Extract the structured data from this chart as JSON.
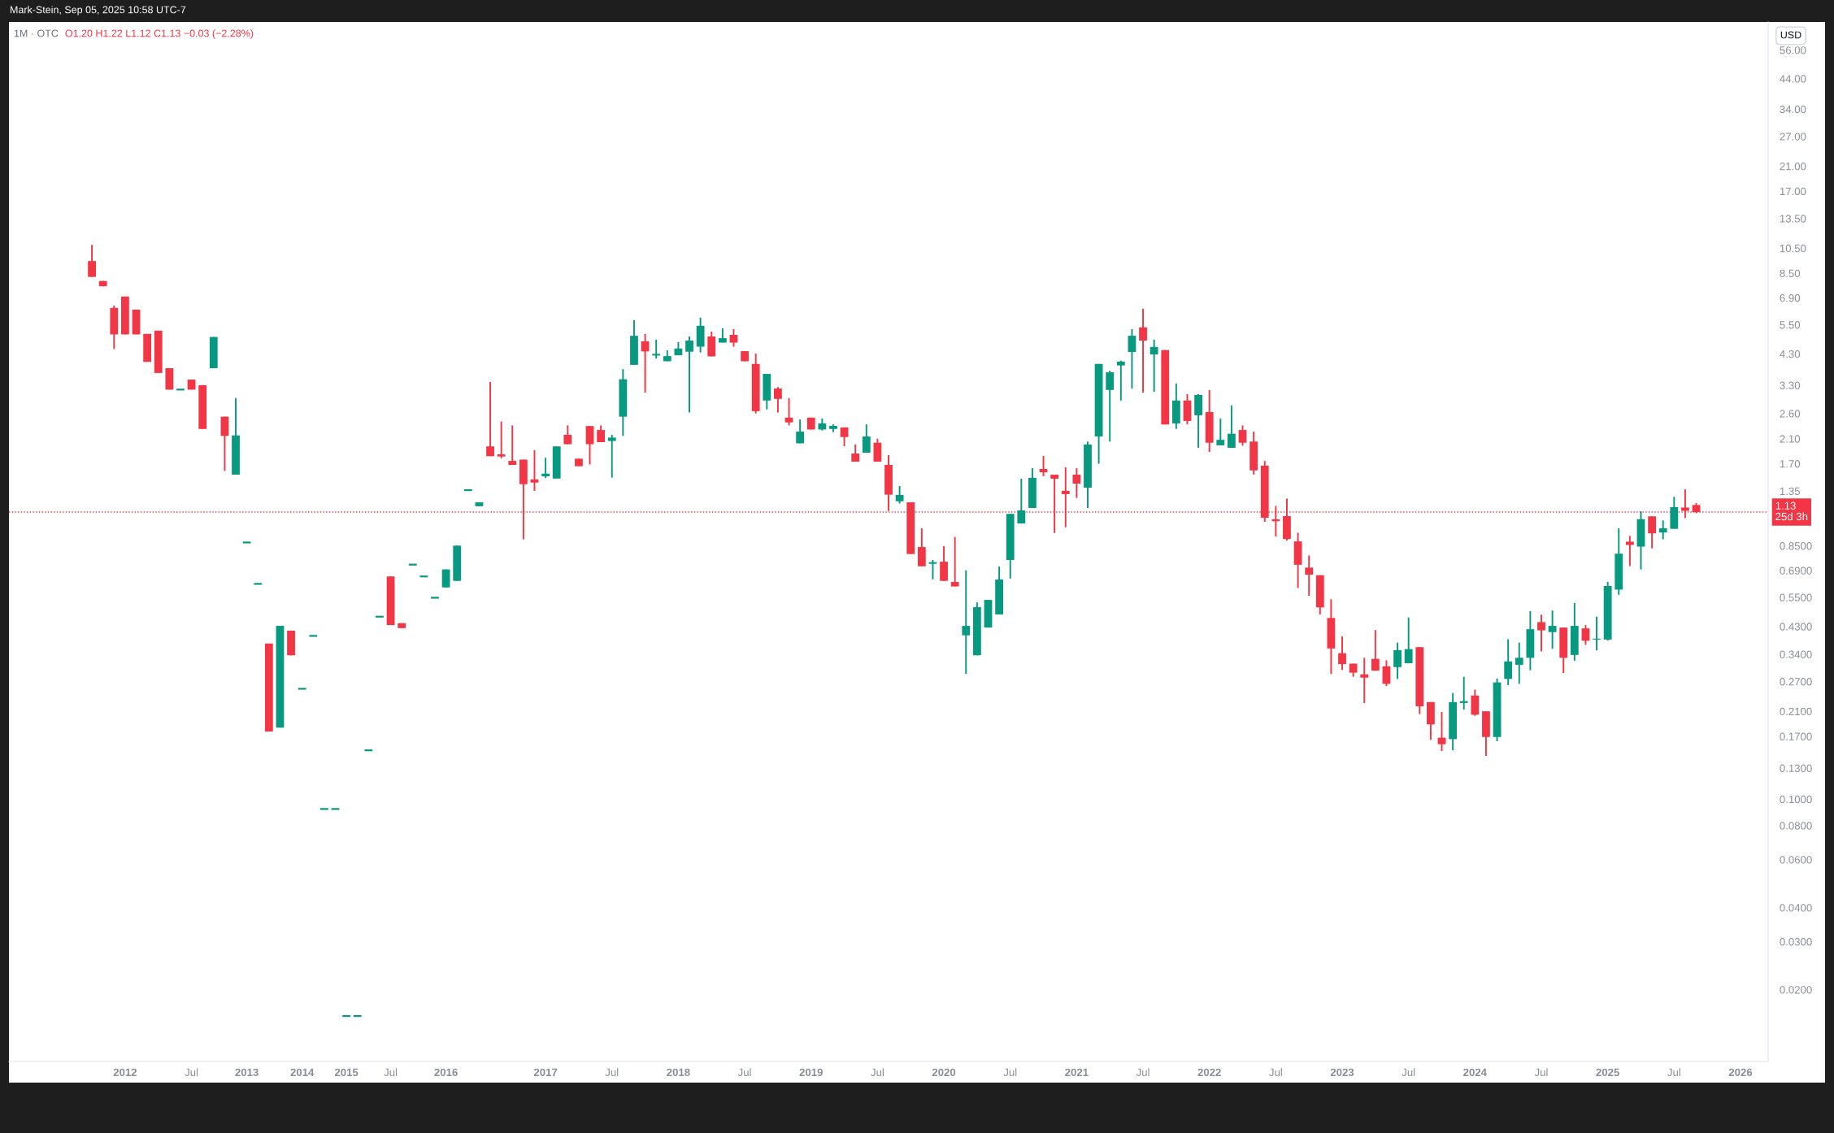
{
  "chart_data": {
    "type": "candlestick",
    "title": "1M · OTC",
    "subtitle": "O1.20 H1.22 L1.12 C1.13 −0.03 (−2.28%)",
    "annotations": [
      "Mark-Stein, Sep 05, 2025 10:58 UTC-7",
      "USD"
    ],
    "categories": [
      null,
      null,
      null,
      null,
      null,
      null,
      null,
      null,
      null,
      null,
      "2012",
      null,
      null,
      null,
      null,
      null,
      "Jul",
      null,
      null,
      null,
      null,
      "2013",
      null,
      null,
      null,
      null,
      "2014",
      null,
      null,
      null,
      "2015",
      null,
      null,
      null,
      "Jul",
      null,
      null,
      null,
      null,
      "2016",
      null,
      null,
      null,
      null,
      null,
      null,
      null,
      null,
      "2017",
      null,
      null,
      null,
      null,
      null,
      "Jul",
      null,
      null,
      null,
      null,
      null,
      "2018",
      null,
      null,
      null,
      null,
      null,
      "Jul",
      null,
      null,
      null,
      null,
      null,
      "2019",
      null,
      null,
      null,
      null,
      null,
      "Jul",
      null,
      null,
      null,
      null,
      null,
      "2020",
      null,
      null,
      null,
      null,
      null,
      "Jul",
      null,
      null,
      null,
      null,
      null,
      "2021",
      null,
      null,
      null,
      null,
      null,
      "Jul",
      null,
      null,
      null,
      null,
      null,
      "2022",
      null,
      null,
      null,
      null,
      null,
      "Jul",
      null,
      null,
      null,
      null,
      null,
      "2023",
      null,
      null,
      null,
      null,
      null,
      "Jul",
      null,
      null,
      null,
      null,
      null,
      "2024",
      null,
      null,
      null,
      null,
      null,
      "Jul",
      null,
      null,
      null,
      null,
      null,
      "2025",
      null,
      null,
      null,
      null,
      null,
      "Jul",
      null,
      null,
      null,
      null,
      null,
      "2026",
      null,
      null
    ],
    "ohlc": [
      null,
      null,
      null,
      null,
      null,
      null,
      null,
      [
        9.42,
        10.8,
        8.24,
        8.24
      ],
      [
        7.96,
        7.96,
        7.61,
        7.61
      ],
      [
        6.34,
        6.47,
        4.48,
        5.07
      ],
      [
        6.98,
        6.98,
        5.07,
        5.07
      ],
      [
        6.25,
        6.25,
        5.07,
        5.07
      ],
      [
        5.09,
        5.09,
        4.02,
        4.02
      ],
      [
        5.23,
        5.23,
        3.66,
        3.66
      ],
      [
        3.81,
        3.81,
        3.18,
        3.18
      ],
      [
        3.18,
        3.18,
        3.18,
        3.18
      ],
      [
        3.46,
        3.46,
        3.18,
        3.18
      ],
      [
        3.3,
        3.3,
        2.28,
        2.28
      ],
      [
        3.81,
        4.96,
        3.81,
        4.96
      ],
      [
        2.53,
        2.53,
        1.6,
        2.15
      ],
      [
        1.55,
        2.96,
        1.55,
        2.16
      ],
      [
        0.874,
        0.874,
        0.874,
        0.874
      ],
      [
        0.616,
        0.616,
        0.616,
        0.616
      ],
      [
        0.372,
        0.372,
        0.177,
        0.177
      ],
      [
        0.183,
        0.432,
        0.183,
        0.432
      ],
      [
        0.415,
        0.415,
        0.337,
        0.337
      ],
      [
        0.254,
        0.254,
        0.254,
        0.254
      ],
      [
        0.397,
        0.397,
        0.397,
        0.397
      ],
      [
        0.092,
        0.092,
        0.092,
        0.092
      ],
      [
        0.092,
        0.092,
        0.092,
        0.092
      ],
      [
        0.016,
        0.016,
        0.016,
        0.016
      ],
      [
        0.016,
        0.016,
        0.016,
        0.016
      ],
      [
        0.151,
        0.151,
        0.151,
        0.151
      ],
      [
        0.467,
        0.467,
        0.467,
        0.467
      ],
      [
        0.656,
        0.656,
        0.435,
        0.435
      ],
      [
        0.442,
        0.442,
        0.424,
        0.424
      ],
      [
        0.725,
        0.725,
        0.725,
        0.725
      ],
      [
        0.656,
        0.656,
        0.656,
        0.656
      ],
      [
        0.548,
        0.548,
        0.548,
        0.548
      ],
      [
        0.598,
        0.696,
        0.598,
        0.696
      ],
      [
        0.632,
        0.851,
        0.632,
        0.851
      ],
      [
        1.36,
        1.36,
        1.36,
        1.36
      ],
      [
        1.187,
        1.227,
        1.187,
        1.227
      ],
      [
        1.968,
        3.39,
        1.812,
        1.812
      ],
      [
        1.84,
        2.43,
        1.78,
        1.807
      ],
      [
        1.741,
        2.35,
        1.683,
        1.683
      ],
      [
        1.76,
        1.76,
        0.897,
        1.43
      ],
      [
        1.489,
        1.905,
        1.352,
        1.45
      ],
      [
        1.528,
        1.788,
        1.506,
        1.563
      ],
      [
        1.5,
        1.968,
        1.5,
        1.968
      ],
      [
        2.17,
        2.35,
        2.005,
        2.005
      ],
      [
        1.774,
        1.774,
        1.665,
        1.665
      ],
      [
        2.337,
        2.337,
        1.69,
        2.005
      ],
      [
        2.26,
        2.35,
        2.04,
        2.04
      ],
      [
        2.06,
        2.17,
        1.511,
        2.12
      ],
      [
        2.53,
        3.78,
        2.15,
        3.47
      ],
      [
        3.92,
        5.72,
        3.92,
        5.01
      ],
      [
        4.78,
        5.09,
        3.1,
        4.39
      ],
      [
        4.24,
        4.85,
        4.13,
        4.3
      ],
      [
        4.04,
        4.43,
        4.04,
        4.22
      ],
      [
        4.25,
        4.75,
        4.25,
        4.5
      ],
      [
        4.38,
        4.98,
        2.62,
        4.81
      ],
      [
        4.57,
        5.84,
        4.35,
        5.45
      ],
      [
        4.98,
        5.19,
        4.21,
        4.21
      ],
      [
        4.73,
        5.34,
        4.73,
        4.91
      ],
      [
        5.05,
        5.3,
        4.57,
        4.73
      ],
      [
        4.4,
        4.4,
        4.04,
        4.04
      ],
      [
        3.95,
        4.31,
        2.6,
        2.65
      ],
      [
        2.9,
        3.63,
        2.69,
        3.63
      ],
      [
        3.21,
        3.25,
        2.62,
        2.94
      ],
      [
        2.51,
        2.96,
        2.35,
        2.41
      ],
      [
        2.02,
        2.47,
        2.02,
        2.23
      ],
      [
        2.51,
        2.51,
        2.27,
        2.27
      ],
      [
        2.27,
        2.49,
        2.25,
        2.39
      ],
      [
        2.28,
        2.37,
        2.22,
        2.34
      ],
      [
        2.31,
        2.31,
        1.97,
        2.13
      ],
      [
        1.853,
        2.0,
        1.73,
        1.73
      ],
      [
        1.866,
        2.37,
        1.866,
        2.14
      ],
      [
        2.03,
        2.1,
        1.73,
        1.73
      ],
      [
        1.683,
        1.827,
        1.14,
        1.309
      ],
      [
        1.238,
        1.408,
        1.214,
        1.306
      ],
      [
        1.227,
        1.227,
        0.793,
        0.793
      ],
      [
        0.841,
        0.985,
        0.715,
        0.715
      ],
      [
        0.73,
        0.754,
        0.64,
        0.74
      ],
      [
        0.743,
        0.847,
        0.632,
        0.632
      ],
      [
        0.626,
        0.916,
        0.603,
        0.603
      ],
      [
        0.399,
        0.691,
        0.288,
        0.432
      ],
      [
        0.337,
        0.527,
        0.337,
        0.506
      ],
      [
        0.426,
        0.538,
        0.426,
        0.538
      ],
      [
        0.476,
        0.713,
        0.476,
        0.639
      ],
      [
        0.754,
        1.113,
        0.644,
        1.113
      ],
      [
        1.026,
        1.498,
        1.026,
        1.146
      ],
      [
        1.17,
        1.637,
        1.17,
        1.509
      ],
      [
        1.626,
        1.815,
        1.53,
        1.581
      ],
      [
        1.55,
        1.55,
        0.947,
        1.498
      ],
      [
        1.352,
        1.649,
        0.994,
        1.315
      ],
      [
        1.55,
        1.637,
        1.273,
        1.437
      ],
      [
        1.389,
        2.05,
        1.17,
        2.0
      ],
      [
        2.14,
        3.95,
        1.7,
        3.95
      ],
      [
        3.17,
        3.73,
        2.05,
        3.68
      ],
      [
        3.9,
        4.06,
        2.9,
        4.03
      ],
      [
        4.37,
        5.3,
        3.21,
        5.01
      ],
      [
        5.38,
        6.3,
        3.1,
        4.81
      ],
      [
        4.28,
        4.85,
        3.12,
        4.56
      ],
      [
        4.44,
        4.44,
        2.37,
        2.37
      ],
      [
        2.39,
        3.35,
        2.28,
        2.9
      ],
      [
        2.9,
        3.06,
        2.37,
        2.44
      ],
      [
        2.56,
        3.06,
        1.945,
        3.04
      ],
      [
        2.63,
        3.17,
        1.878,
        2.03
      ],
      [
        1.986,
        2.49,
        1.986,
        2.08
      ],
      [
        1.945,
        2.78,
        1.945,
        2.19
      ],
      [
        2.26,
        2.35,
        1.98,
        2.03
      ],
      [
        2.05,
        2.23,
        1.552,
        1.607
      ],
      [
        1.672,
        1.74,
        1.041,
        1.077
      ],
      [
        1.063,
        1.19,
        0.919,
        1.046
      ],
      [
        1.092,
        1.267,
        0.889,
        0.9
      ],
      [
        0.882,
        0.949,
        0.596,
        0.724
      ],
      [
        0.707,
        0.783,
        0.557,
        0.666
      ],
      [
        0.663,
        0.663,
        0.476,
        0.505
      ],
      [
        0.462,
        0.541,
        0.288,
        0.357
      ],
      [
        0.343,
        0.395,
        0.298,
        0.313
      ],
      [
        0.314,
        0.314,
        0.281,
        0.291
      ],
      [
        0.287,
        0.33,
        0.225,
        0.279
      ],
      [
        0.327,
        0.417,
        0.296,
        0.296
      ],
      [
        0.307,
        0.323,
        0.26,
        0.265
      ],
      [
        0.305,
        0.375,
        0.276,
        0.352
      ],
      [
        0.315,
        0.464,
        0.315,
        0.355
      ],
      [
        0.361,
        0.361,
        0.205,
        0.219
      ],
      [
        0.227,
        0.227,
        0.165,
        0.188
      ],
      [
        0.168,
        0.209,
        0.15,
        0.159
      ],
      [
        0.166,
        0.245,
        0.151,
        0.227
      ],
      [
        0.227,
        0.281,
        0.213,
        0.227
      ],
      [
        0.24,
        0.252,
        0.202,
        0.204
      ],
      [
        0.21,
        0.21,
        0.144,
        0.169
      ],
      [
        0.169,
        0.277,
        0.163,
        0.268
      ],
      [
        0.276,
        0.386,
        0.262,
        0.32
      ],
      [
        0.311,
        0.375,
        0.265,
        0.33
      ],
      [
        0.33,
        0.489,
        0.297,
        0.42
      ],
      [
        0.446,
        0.475,
        0.348,
        0.416
      ],
      [
        0.41,
        0.492,
        0.356,
        0.432
      ],
      [
        0.426,
        0.426,
        0.29,
        0.33
      ],
      [
        0.338,
        0.524,
        0.322,
        0.432
      ],
      [
        0.423,
        0.435,
        0.368,
        0.381
      ],
      [
        0.385,
        0.467,
        0.351,
        0.388
      ],
      [
        0.385,
        0.627,
        0.382,
        0.605
      ],
      [
        0.587,
        0.985,
        0.562,
        0.795
      ],
      [
        0.88,
        0.924,
        0.716,
        0.856
      ],
      [
        0.844,
        1.137,
        0.696,
        1.064
      ],
      [
        1.09,
        1.09,
        0.832,
        0.944
      ],
      [
        0.951,
        1.053,
        0.898,
        0.985
      ],
      [
        0.981,
        1.285,
        0.981,
        1.178
      ],
      [
        1.174,
        1.369,
        1.075,
        1.142
      ],
      [
        1.2,
        1.22,
        1.12,
        1.13
      ],
      null,
      null,
      null,
      null,
      null,
      null
    ],
    "colors": [
      null,
      null,
      null,
      null,
      null,
      null,
      null,
      "#f23645",
      "#f23645",
      "#f23645",
      "#f23645",
      "#f23645",
      "#f23645",
      "#f23645",
      "#f23645",
      "#089981",
      "#f23645",
      "#f23645",
      "#089981",
      "#f23645",
      "#089981",
      "#089981",
      "#089981",
      "#f23645",
      "#089981",
      "#f23645",
      "#089981",
      "#089981",
      "#089981",
      "#089981",
      "#089981",
      "#089981",
      "#089981",
      "#089981",
      "#f23645",
      "#f23645",
      "#089981",
      "#089981",
      "#089981",
      "#089981",
      "#089981",
      "#089981",
      "#089981",
      "#f23645",
      "#f23645",
      "#f23645",
      "#f23645",
      "#f23645",
      "#089981",
      "#089981",
      "#f23645",
      "#f23645",
      "#f23645",
      "#f23645",
      "#089981",
      "#089981",
      "#089981",
      "#f23645",
      "#089981",
      "#089981",
      "#089981",
      "#089981",
      "#089981",
      "#f23645",
      "#089981",
      "#f23645",
      "#f23645",
      "#f23645",
      "#089981",
      "#f23645",
      "#f23645",
      "#089981",
      "#f23645",
      "#089981",
      "#089981",
      "#f23645",
      "#f23645",
      "#089981",
      "#f23645",
      "#f23645",
      "#089981",
      "#f23645",
      "#f23645",
      "#089981",
      "#f23645",
      "#f23645",
      "#089981",
      "#089981",
      "#089981",
      "#089981",
      "#089981",
      "#089981",
      "#089981",
      "#f23645",
      "#f23645",
      "#f23645",
      "#f23645",
      "#089981",
      "#089981",
      "#089981",
      "#089981",
      "#089981",
      "#f23645",
      "#089981",
      "#f23645",
      "#089981",
      "#f23645",
      "#089981",
      "#f23645",
      "#089981",
      "#089981",
      "#f23645",
      "#f23645",
      "#f23645",
      "#f23645",
      "#f23645",
      "#f23645",
      "#f23645",
      "#f23645",
      "#f23645",
      "#f23645",
      "#f23645",
      "#f23645",
      "#f23645",
      "#f23645",
      "#089981",
      "#089981",
      "#f23645",
      "#f23645",
      "#f23645",
      "#089981",
      "#089981",
      "#f23645",
      "#f23645",
      "#089981",
      "#089981",
      "#089981",
      "#089981",
      "#f23645",
      "#089981",
      "#f23645",
      "#089981",
      "#f23645",
      "#089981",
      "#089981",
      "#089981",
      "#f23645",
      "#089981",
      "#f23645",
      "#089981",
      "#089981",
      "#f23645",
      "#f23645",
      null,
      null,
      null,
      null,
      null,
      null
    ],
    "log": true,
    "ylim": [
      0.0109,
      71
    ],
    "yticks": [
      {
        "value": 0.02,
        "label": "0.0200"
      },
      {
        "value": 0.03,
        "label": "0.0300"
      },
      {
        "value": 0.04,
        "label": "0.0400"
      },
      {
        "value": 0.06,
        "label": "0.0600"
      },
      {
        "value": 0.08,
        "label": "0.0800"
      },
      {
        "value": 0.1,
        "label": "0.1000"
      },
      {
        "value": 0.13,
        "label": "0.1300"
      },
      {
        "value": 0.17,
        "label": "0.1700"
      },
      {
        "value": 0.21,
        "label": "0.2100"
      },
      {
        "value": 0.27,
        "label": "0.2700"
      },
      {
        "value": 0.34,
        "label": "0.3400"
      },
      {
        "value": 0.43,
        "label": "0.4300"
      },
      {
        "value": 0.55,
        "label": "0.5500"
      },
      {
        "value": 0.69,
        "label": "0.6900"
      },
      {
        "value": 0.85,
        "label": "0.8500"
      },
      1.35,
      {
        "value": 1.7,
        "label": "1.70"
      },
      {
        "value": 2.1,
        "label": "2.10"
      },
      {
        "value": 2.6,
        "label": "2.60"
      },
      {
        "value": 3.3,
        "label": "3.30"
      },
      {
        "value": 4.3,
        "label": "4.30"
      },
      {
        "value": 5.5,
        "label": "5.50"
      },
      {
        "value": 6.9,
        "label": "6.90"
      },
      {
        "value": 8.5,
        "label": "8.50"
      },
      {
        "value": 10.5,
        "label": "10.50"
      },
      {
        "value": 13.5,
        "label": "13.50"
      },
      {
        "value": 17,
        "label": "17.00"
      },
      {
        "value": 21,
        "label": "21.00"
      },
      {
        "value": 27,
        "label": "27.00"
      },
      {
        "value": 34,
        "label": "34.00"
      },
      {
        "value": 44,
        "label": "44.00"
      },
      {
        "value": 56,
        "label": "56.00"
      }
    ],
    "ref_lines": [
      {
        "axis": "y",
        "value": 1.13,
        "label": "1.13\n25d 3h",
        "color": "#f23645",
        "line_style": "dotted"
      }
    ]
  }
}
